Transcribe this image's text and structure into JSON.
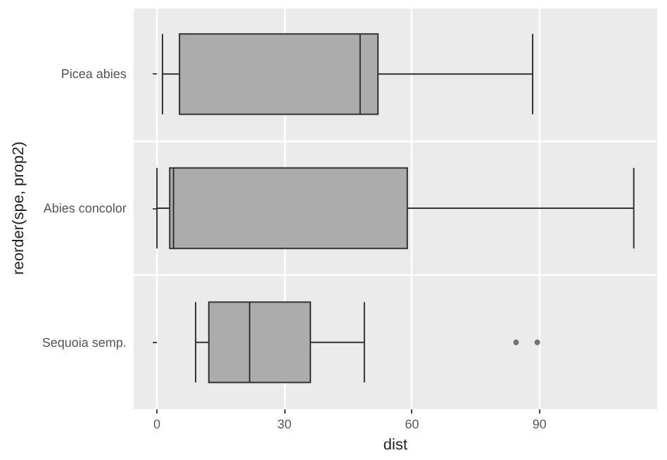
{
  "chart_data": {
    "type": "box",
    "orientation": "horizontal",
    "xlabel": "dist",
    "ylabel": "reorder(spe, prop2)",
    "categories": [
      "Picea abies",
      "Abies concolor",
      "Sequoia semp."
    ],
    "boxes": [
      {
        "low": 1.3,
        "q1": 5.3,
        "median": 47.8,
        "q3": 52.0,
        "high": 88.4
      },
      {
        "low": 0,
        "q1": 3.0,
        "median": 3.9,
        "q3": 58.9,
        "high": 112.2
      },
      {
        "low": 9.1,
        "q1": 12.2,
        "median": 21.8,
        "q3": 36.1,
        "high": 48.8,
        "outliers": [
          84.5,
          89.5
        ]
      }
    ],
    "color": "#acacac",
    "xlim": [
      -5.5,
      117.7
    ],
    "xticks": [
      0,
      30,
      60,
      90
    ],
    "grid": true
  }
}
